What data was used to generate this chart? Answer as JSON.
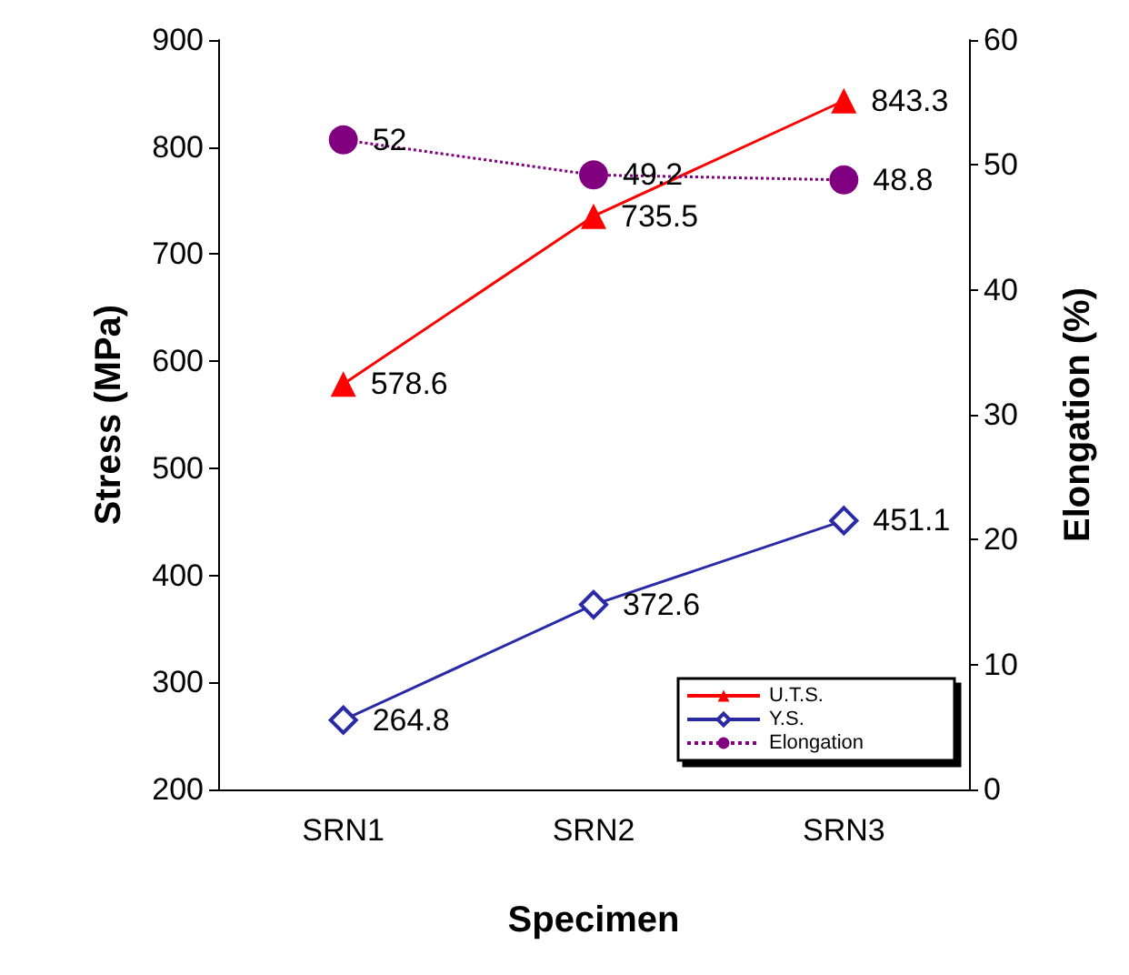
{
  "chart_data": {
    "type": "line",
    "xlabel": "Specimen",
    "ylabel": "Stress (MPa)",
    "y2label": "Elongation (%)",
    "categories": [
      "SRN1",
      "SRN2",
      "SRN3"
    ],
    "series": [
      {
        "name": "U.T.S.",
        "color": "#ff0000",
        "values": [
          578.6,
          735.5,
          843.3
        ],
        "marker": "triangle",
        "line_style": "solid"
      },
      {
        "name": "Y.S.",
        "color": "#2a2aa8",
        "values": [
          264.8,
          372.6,
          451.1
        ],
        "marker": "diamond",
        "line_style": "solid"
      },
      {
        "name": "Elongation",
        "color": "#800080",
        "values": [
          52,
          49.2,
          48.8
        ],
        "marker": "circle",
        "line_style": "dotted",
        "axis": "y2"
      }
    ],
    "ylim": [
      200,
      900
    ],
    "yticks": [
      200,
      300,
      400,
      500,
      600,
      700,
      800,
      900
    ],
    "y2lim": [
      0,
      60
    ],
    "y2ticks": [
      0,
      10,
      20,
      30,
      40,
      50,
      60
    ],
    "data_labels": true,
    "grid": false,
    "legend": "bottom right"
  }
}
